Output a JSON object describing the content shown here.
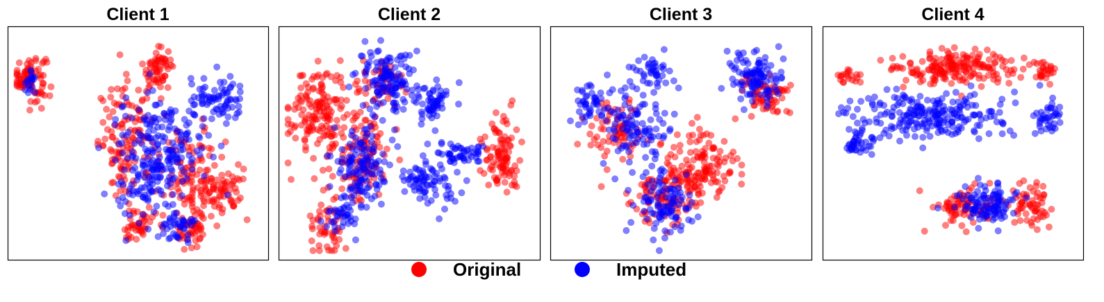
{
  "figure": {
    "legend": {
      "placement": "bottom-center",
      "items": [
        {
          "label": "Original",
          "color": "#ff0000"
        },
        {
          "label": "Imputed",
          "color": "#0000ff"
        }
      ]
    }
  },
  "chart_data": [
    {
      "type": "scatter",
      "title": "Client 1",
      "xlabel": "",
      "ylabel": "",
      "axis_ticks": false,
      "grid": false,
      "series": [
        {
          "name": "Original",
          "color": "#ff0000",
          "clusters": [
            {
              "center": [
                0.06,
                0.8
              ],
              "spread": [
                0.045,
                0.07
              ],
              "count": 90
            },
            {
              "center": [
                0.58,
                0.84
              ],
              "spread": [
                0.04,
                0.06
              ],
              "count": 60
            },
            {
              "center": [
                0.46,
                0.5
              ],
              "spread": [
                0.08,
                0.18
              ],
              "count": 130
            },
            {
              "center": [
                0.74,
                0.34
              ],
              "spread": [
                0.09,
                0.14
              ],
              "count": 120
            },
            {
              "center": [
                0.72,
                0.1
              ],
              "spread": [
                0.04,
                0.05
              ],
              "count": 40
            },
            {
              "center": [
                0.5,
                0.12
              ],
              "spread": [
                0.05,
                0.06
              ],
              "count": 40
            },
            {
              "center": [
                0.85,
                0.3
              ],
              "spread": [
                0.06,
                0.08
              ],
              "count": 45
            }
          ]
        },
        {
          "name": "Imputed",
          "color": "#0000ff",
          "clusters": [
            {
              "center": [
                0.06,
                0.78
              ],
              "spread": [
                0.025,
                0.04
              ],
              "count": 18
            },
            {
              "center": [
                0.6,
                0.5
              ],
              "spread": [
                0.12,
                0.15
              ],
              "count": 170
            },
            {
              "center": [
                0.82,
                0.68
              ],
              "spread": [
                0.08,
                0.07
              ],
              "count": 80
            },
            {
              "center": [
                0.66,
                0.12
              ],
              "spread": [
                0.05,
                0.05
              ],
              "count": 40
            },
            {
              "center": [
                0.53,
                0.28
              ],
              "spread": [
                0.08,
                0.1
              ],
              "count": 70
            }
          ]
        }
      ]
    },
    {
      "type": "scatter",
      "title": "Client 2",
      "xlabel": "",
      "ylabel": "",
      "axis_ticks": false,
      "grid": false,
      "series": [
        {
          "name": "Original",
          "color": "#ff0000",
          "clusters": [
            {
              "center": [
                0.13,
                0.65
              ],
              "spread": [
                0.08,
                0.14
              ],
              "count": 150
            },
            {
              "center": [
                0.87,
                0.45
              ],
              "spread": [
                0.05,
                0.12
              ],
              "count": 100
            },
            {
              "center": [
                0.3,
                0.45
              ],
              "spread": [
                0.08,
                0.15
              ],
              "count": 120
            },
            {
              "center": [
                0.17,
                0.12
              ],
              "spread": [
                0.05,
                0.07
              ],
              "count": 50
            },
            {
              "center": [
                0.38,
                0.78
              ],
              "spread": [
                0.06,
                0.07
              ],
              "count": 50
            }
          ]
        },
        {
          "name": "Imputed",
          "color": "#0000ff",
          "clusters": [
            {
              "center": [
                0.4,
                0.78
              ],
              "spread": [
                0.08,
                0.1
              ],
              "count": 130
            },
            {
              "center": [
                0.6,
                0.68
              ],
              "spread": [
                0.05,
                0.06
              ],
              "count": 60
            },
            {
              "center": [
                0.3,
                0.4
              ],
              "spread": [
                0.07,
                0.12
              ],
              "count": 120
            },
            {
              "center": [
                0.58,
                0.32
              ],
              "spread": [
                0.08,
                0.06
              ],
              "count": 80
            },
            {
              "center": [
                0.7,
                0.45
              ],
              "spread": [
                0.07,
                0.04
              ],
              "count": 50
            },
            {
              "center": [
                0.24,
                0.18
              ],
              "spread": [
                0.06,
                0.06
              ],
              "count": 40
            }
          ]
        }
      ]
    },
    {
      "type": "scatter",
      "title": "Client 3",
      "xlabel": "",
      "ylabel": "",
      "axis_ticks": false,
      "grid": false,
      "series": [
        {
          "name": "Original",
          "color": "#ff0000",
          "clusters": [
            {
              "center": [
                0.58,
                0.38
              ],
              "spread": [
                0.1,
                0.12
              ],
              "count": 150
            },
            {
              "center": [
                0.84,
                0.72
              ],
              "spread": [
                0.07,
                0.06
              ],
              "count": 70
            },
            {
              "center": [
                0.24,
                0.55
              ],
              "spread": [
                0.08,
                0.1
              ],
              "count": 70
            },
            {
              "center": [
                0.42,
                0.25
              ],
              "spread": [
                0.08,
                0.1
              ],
              "count": 80
            }
          ]
        },
        {
          "name": "Imputed",
          "color": "#0000ff",
          "clusters": [
            {
              "center": [
                0.8,
                0.8
              ],
              "spread": [
                0.07,
                0.08
              ],
              "count": 110
            },
            {
              "center": [
                0.3,
                0.58
              ],
              "spread": [
                0.1,
                0.12
              ],
              "count": 110
            },
            {
              "center": [
                0.42,
                0.22
              ],
              "spread": [
                0.08,
                0.09
              ],
              "count": 100
            },
            {
              "center": [
                0.14,
                0.68
              ],
              "spread": [
                0.05,
                0.06
              ],
              "count": 40
            },
            {
              "center": [
                0.4,
                0.82
              ],
              "spread": [
                0.06,
                0.06
              ],
              "count": 40
            }
          ]
        }
      ]
    },
    {
      "type": "scatter",
      "title": "Client 4",
      "xlabel": "",
      "ylabel": "",
      "axis_ticks": false,
      "grid": false,
      "series": [
        {
          "name": "Original",
          "color": "#ff0000",
          "clusters": [
            {
              "center": [
                0.52,
                0.84
              ],
              "spread": [
                0.18,
                0.05
              ],
              "count": 200
            },
            {
              "center": [
                0.07,
                0.8
              ],
              "spread": [
                0.03,
                0.025
              ],
              "count": 20
            },
            {
              "center": [
                0.88,
                0.82
              ],
              "spread": [
                0.03,
                0.03
              ],
              "count": 20
            },
            {
              "center": [
                0.82,
                0.22
              ],
              "spread": [
                0.05,
                0.07
              ],
              "count": 60
            },
            {
              "center": [
                0.55,
                0.2
              ],
              "spread": [
                0.1,
                0.07
              ],
              "count": 80
            }
          ]
        },
        {
          "name": "Imputed",
          "color": "#0000ff",
          "clusters": [
            {
              "center": [
                0.4,
                0.62
              ],
              "spread": [
                0.2,
                0.07
              ],
              "count": 230
            },
            {
              "center": [
                0.88,
                0.62
              ],
              "spread": [
                0.04,
                0.06
              ],
              "count": 40
            },
            {
              "center": [
                0.63,
                0.22
              ],
              "spread": [
                0.08,
                0.06
              ],
              "count": 110
            },
            {
              "center": [
                0.12,
                0.5
              ],
              "spread": [
                0.05,
                0.04
              ],
              "count": 40
            }
          ]
        }
      ]
    }
  ]
}
